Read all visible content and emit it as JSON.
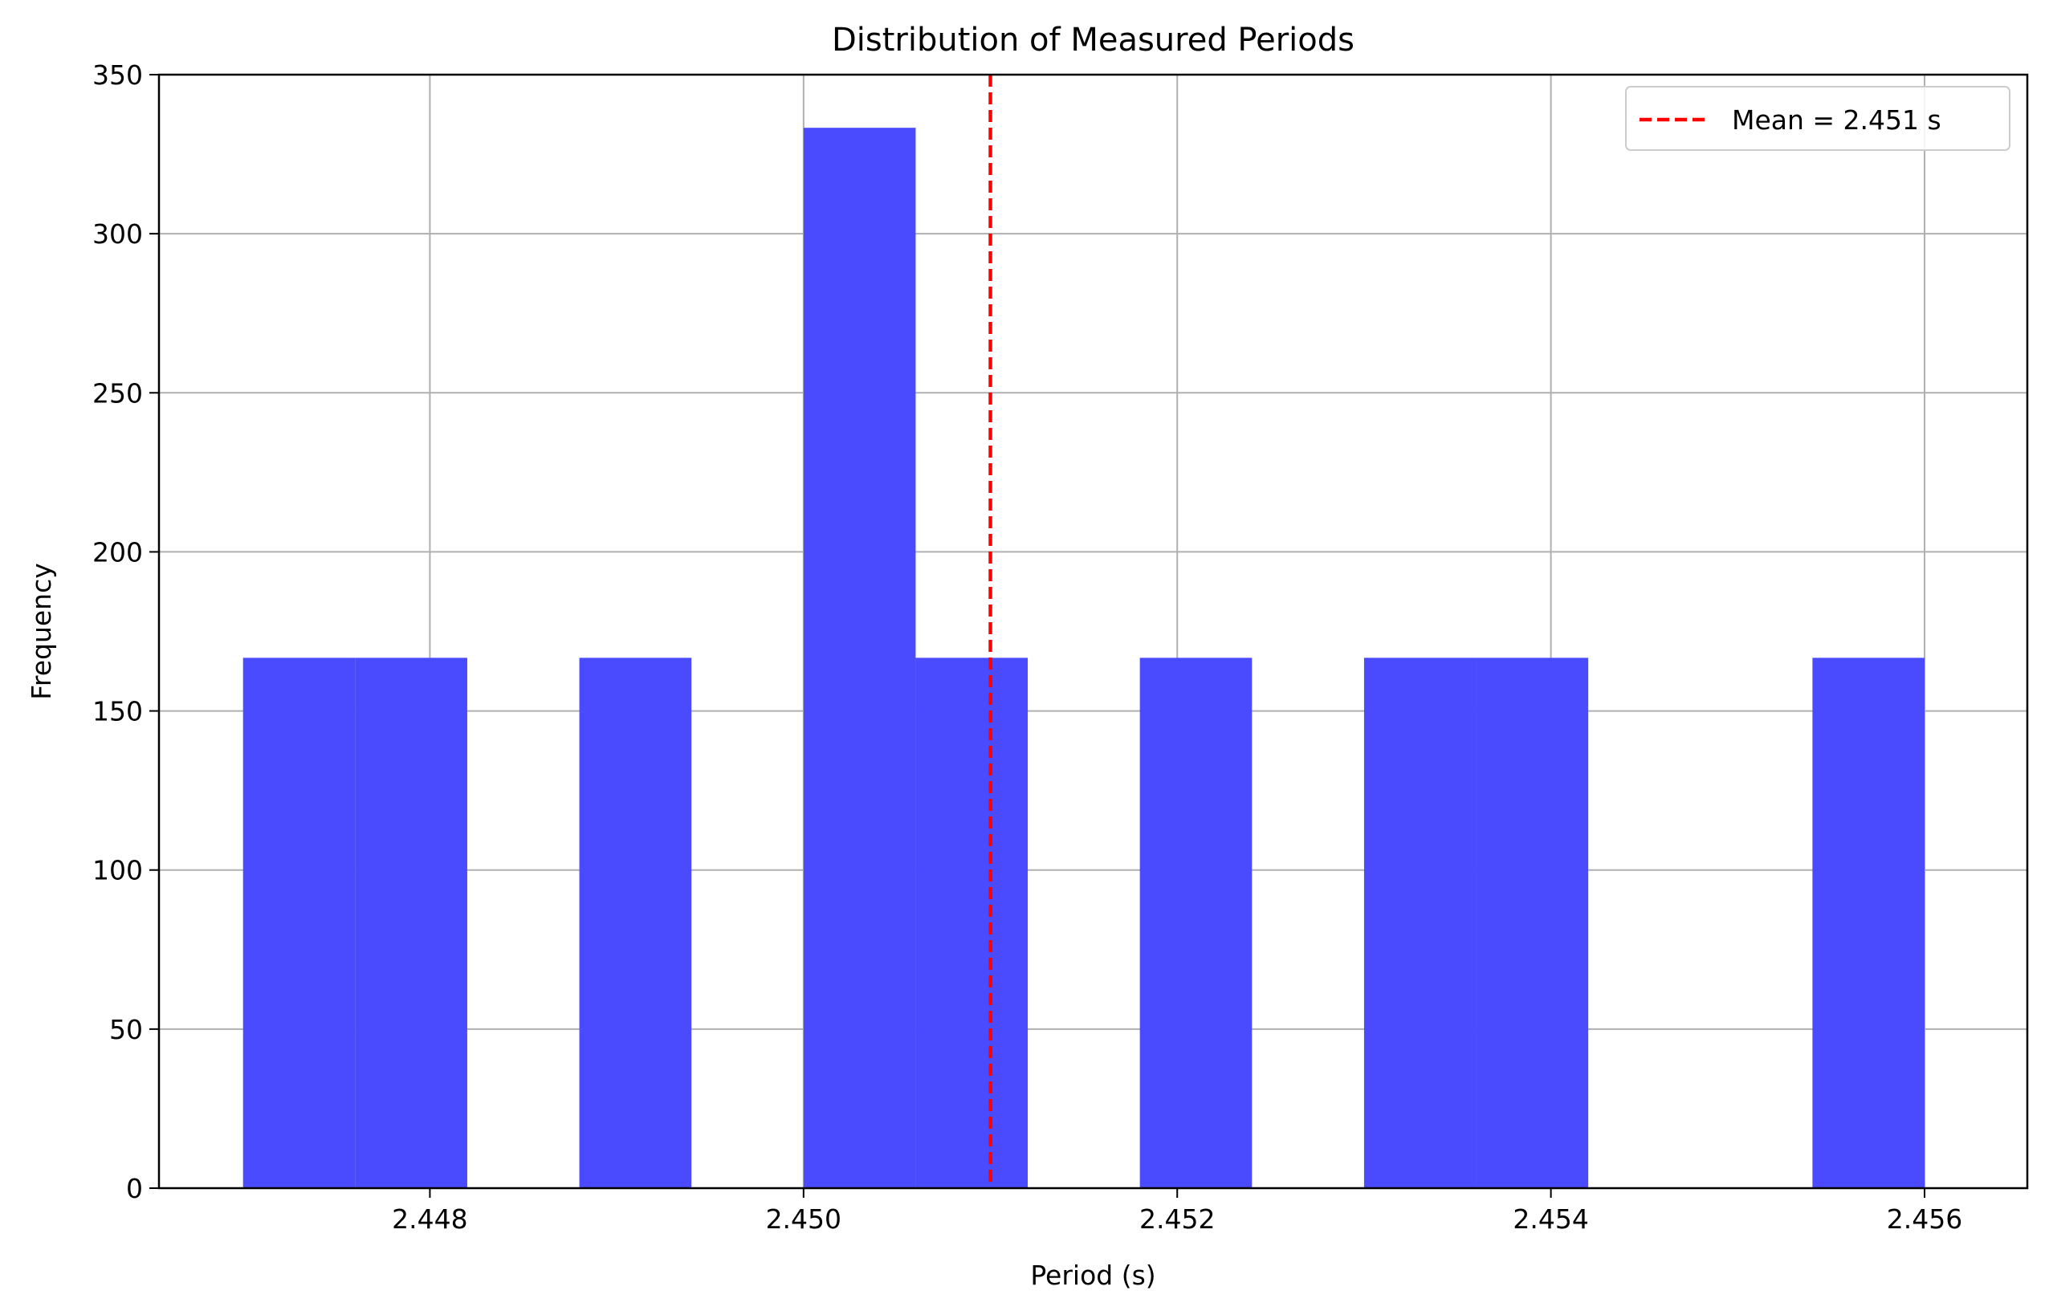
{
  "chart_data": {
    "type": "bar",
    "title": "Distribution of Measured Periods",
    "xlabel": "Period (s)",
    "ylabel": "Frequency",
    "xlim": [
      2.44655,
      2.45655
    ],
    "ylim": [
      0,
      350
    ],
    "x_ticks": [
      2.448,
      2.45,
      2.452,
      2.454,
      2.456
    ],
    "x_tick_labels": [
      "2.448",
      "2.450",
      "2.452",
      "2.454",
      "2.456"
    ],
    "y_ticks": [
      0,
      50,
      100,
      150,
      200,
      250,
      300,
      350
    ],
    "y_tick_labels": [
      "0",
      "50",
      "100",
      "150",
      "200",
      "250",
      "300",
      "350"
    ],
    "grid": true,
    "bar_color": "#4a4aff",
    "bins": [
      {
        "x0": 2.447,
        "x1": 2.4476,
        "value": 166.7
      },
      {
        "x0": 2.4476,
        "x1": 2.4482,
        "value": 166.7
      },
      {
        "x0": 2.4482,
        "x1": 2.4488,
        "value": 0
      },
      {
        "x0": 2.4488,
        "x1": 2.4494,
        "value": 166.7
      },
      {
        "x0": 2.4494,
        "x1": 2.45,
        "value": 0
      },
      {
        "x0": 2.45,
        "x1": 2.4506,
        "value": 333.3
      },
      {
        "x0": 2.4506,
        "x1": 2.4512,
        "value": 166.7
      },
      {
        "x0": 2.4512,
        "x1": 2.4518,
        "value": 0
      },
      {
        "x0": 2.4518,
        "x1": 2.4524,
        "value": 166.7
      },
      {
        "x0": 2.4524,
        "x1": 2.453,
        "value": 0
      },
      {
        "x0": 2.453,
        "x1": 2.4536,
        "value": 166.7
      },
      {
        "x0": 2.4536,
        "x1": 2.4542,
        "value": 166.7
      },
      {
        "x0": 2.4542,
        "x1": 2.4548,
        "value": 0
      },
      {
        "x0": 2.4548,
        "x1": 2.4554,
        "value": 0
      },
      {
        "x0": 2.4554,
        "x1": 2.456,
        "value": 166.7
      }
    ],
    "mean_line": {
      "x": 2.451,
      "label": "Mean = 2.451 s",
      "color": "#ff0000",
      "style": "dashed"
    },
    "legend": {
      "position": "top-right",
      "entries": [
        "Mean = 2.451 s"
      ]
    }
  }
}
